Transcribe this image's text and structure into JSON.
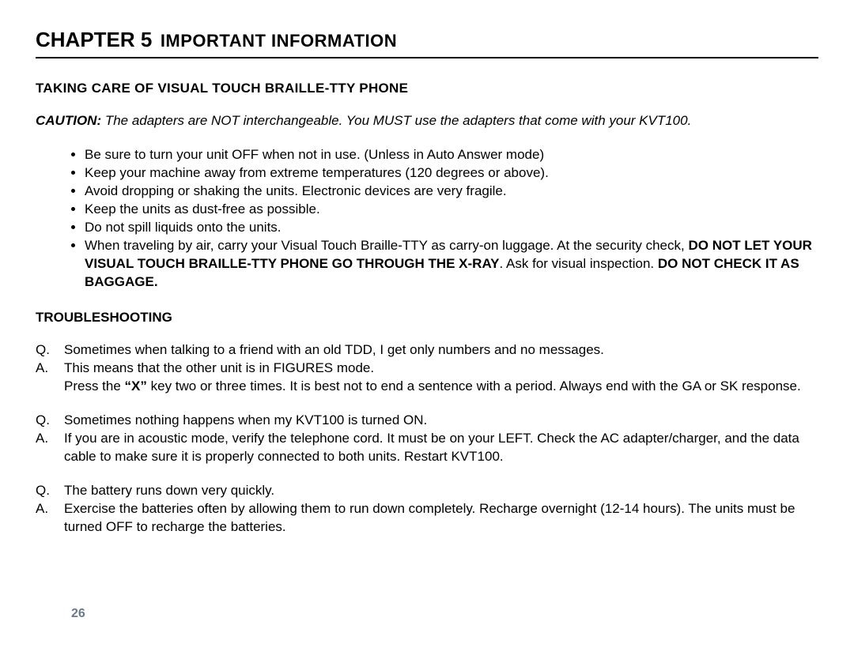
{
  "header": {
    "chapter_num": "CHAPTER 5",
    "chapter_title": "IMPORTANT INFORMATION"
  },
  "section1": {
    "heading": "TAKING CARE OF VISUAL TOUCH BRAILLE-TTY PHONE",
    "caution_label": "CAUTION:",
    "caution_text": " The adapters are NOT interchangeable.  You MUST use the adapters that come with your KVT100.",
    "bullets": {
      "b0": "Be sure to turn your unit OFF when not in use. (Unless in Auto Answer mode)",
      "b1": "Keep your machine away from extreme temperatures (120 degrees or above).",
      "b2": "Avoid dropping or shaking the units.  Electronic devices are very fragile.",
      "b3": "Keep the units as dust-free as possible.",
      "b4": "Do not spill liquids onto the units.",
      "b5_pre": "When traveling by air, carry your Visual Touch Braille-TTY as carry-on luggage.  At the security check, ",
      "b5_bold1": "DO NOT LET YOUR VISUAL TOUCH BRAILLE-TTY PHONE GO THROUGH THE X-RAY",
      "b5_mid": ".  Ask for visual inspection.  ",
      "b5_bold2": "DO NOT CHECK IT AS BAGGAGE."
    }
  },
  "section2": {
    "heading": "TROUBLESHOOTING",
    "q1": {
      "p": "Q.",
      "t": "Sometimes when talking to a friend with an old TDD, I get only numbers and no messages."
    },
    "a1": {
      "p": "A.",
      "t_pre": "This means that the other unit is in FIGURES mode.",
      "t_line2_pre": "Press the ",
      "t_bold": "“X”",
      "t_line2_post": " key two or three times.  It is best not to end a sentence with a period. Always end with the GA or SK response."
    },
    "q2": {
      "p": "Q.",
      "t": "Sometimes nothing happens when my KVT100 is turned ON."
    },
    "a2": {
      "p": "A.",
      "t": "If you are in acoustic mode, verify the telephone cord. It must be on your LEFT.  Check the AC adapter/charger, and the data cable to make sure it is properly connected to both units. Restart KVT100."
    },
    "q3": {
      "p": "Q.",
      "t": " The battery runs down very quickly."
    },
    "a3": {
      "p": "A.",
      "t": "Exercise the batteries often by allowing them to run down completely.  Recharge overnight (12-14 hours).  The units must be turned OFF to recharge the batteries."
    }
  },
  "page_number": "26",
  "colors": {
    "text": "#000000",
    "page_num": "#6b7a8a",
    "rule": "#000000",
    "background": "#ffffff"
  },
  "typography": {
    "body_fontsize_pt": 13,
    "heading_fontsize_pt": 13,
    "chapter_num_fontsize_pt": 20,
    "chapter_title_fontsize_pt": 17,
    "font_family": "Arial"
  }
}
